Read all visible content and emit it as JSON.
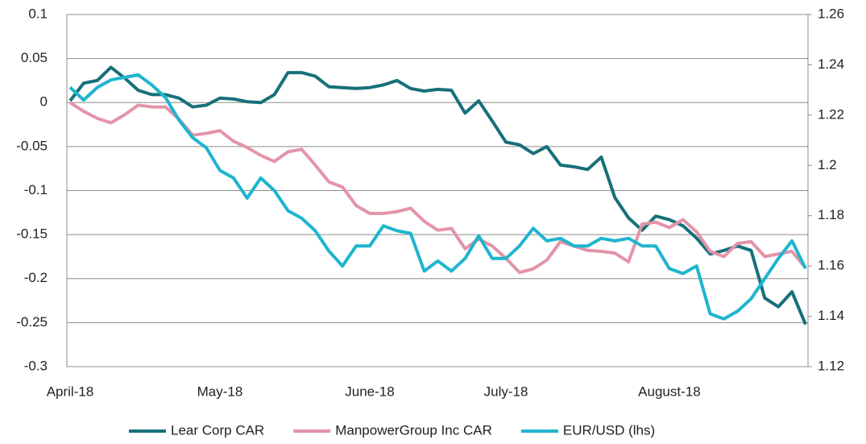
{
  "chart_data": {
    "type": "line",
    "categories": [
      "April-18",
      null,
      null,
      null,
      null,
      null,
      null,
      null,
      null,
      null,
      null,
      "May-18",
      null,
      null,
      null,
      null,
      null,
      null,
      null,
      null,
      null,
      null,
      "June-18",
      null,
      null,
      null,
      null,
      null,
      null,
      null,
      null,
      null,
      "July-18",
      null,
      null,
      null,
      null,
      null,
      null,
      null,
      null,
      null,
      null,
      null,
      "August-18",
      null,
      null,
      null,
      null,
      null,
      null,
      null,
      null,
      null,
      null
    ],
    "series": [
      {
        "name": "Lear Corp CAR",
        "color": "#17707a",
        "values": [
          0.002,
          0.022,
          0.025,
          0.04,
          0.028,
          0.014,
          0.009,
          0.009,
          0.005,
          -0.005,
          -0.003,
          0.005,
          0.004,
          0.001,
          0,
          0.009,
          0.034,
          0.034,
          0.03,
          0.018,
          0.017,
          0.016,
          0.017,
          0.02,
          0.025,
          0.016,
          0.013,
          0.015,
          0.014,
          -0.012,
          0.002,
          -0.021,
          -0.045,
          -0.048,
          -0.058,
          -0.05,
          -0.071,
          -0.073,
          -0.076,
          -0.062,
          -0.108,
          -0.131,
          -0.145,
          -0.129,
          -0.133,
          -0.14,
          -0.154,
          -0.172,
          -0.168,
          -0.163,
          -0.168,
          -0.222,
          -0.232,
          -0.215,
          -0.252
        ]
      },
      {
        "name": "ManpowerGroup Inc CAR",
        "color": "#e394a8",
        "values": [
          0,
          -0.01,
          -0.018,
          -0.023,
          -0.014,
          -0.003,
          -0.005,
          -0.005,
          -0.019,
          -0.037,
          -0.035,
          -0.032,
          -0.044,
          -0.051,
          -0.06,
          -0.067,
          -0.056,
          -0.053,
          -0.071,
          -0.09,
          -0.096,
          -0.117,
          -0.126,
          -0.126,
          -0.124,
          -0.12,
          -0.135,
          -0.145,
          -0.143,
          -0.166,
          -0.155,
          -0.163,
          -0.177,
          -0.193,
          -0.189,
          -0.179,
          -0.158,
          -0.163,
          -0.168,
          -0.169,
          -0.171,
          -0.181,
          -0.138,
          -0.136,
          -0.142,
          -0.133,
          -0.147,
          -0.169,
          -0.175,
          -0.16,
          -0.158,
          -0.175,
          -0.172,
          -0.169,
          -0.188
        ]
      },
      {
        "name": "EUR/USD (lhs)",
        "color": "#1fb5cf",
        "axis": "y2",
        "values": [
          1.231,
          1.226,
          1.231,
          1.234,
          1.235,
          1.236,
          1.232,
          1.227,
          1.218,
          1.211,
          1.207,
          1.198,
          1.195,
          1.187,
          1.195,
          1.19,
          1.182,
          1.179,
          1.174,
          1.166,
          1.16,
          1.168,
          1.168,
          1.176,
          1.174,
          1.173,
          1.158,
          1.162,
          1.158,
          1.163,
          1.172,
          1.163,
          1.163,
          1.168,
          1.175,
          1.17,
          1.171,
          1.168,
          1.168,
          1.171,
          1.17,
          1.171,
          1.168,
          1.168,
          1.159,
          1.157,
          1.16,
          1.141,
          1.139,
          1.142,
          1.147,
          1.155,
          1.163,
          1.17,
          1.159
        ]
      }
    ],
    "ylim": [
      -0.3,
      0.1
    ],
    "yticks": [
      0.1,
      0.05,
      0,
      -0.05,
      -0.1,
      -0.15,
      -0.2,
      -0.25,
      -0.3
    ],
    "y2lim": [
      1.12,
      1.26
    ],
    "y2ticks": [
      1.26,
      1.24,
      1.22,
      1.2,
      1.18,
      1.16,
      1.14,
      1.12
    ],
    "grid": true,
    "legend": "bottom"
  }
}
